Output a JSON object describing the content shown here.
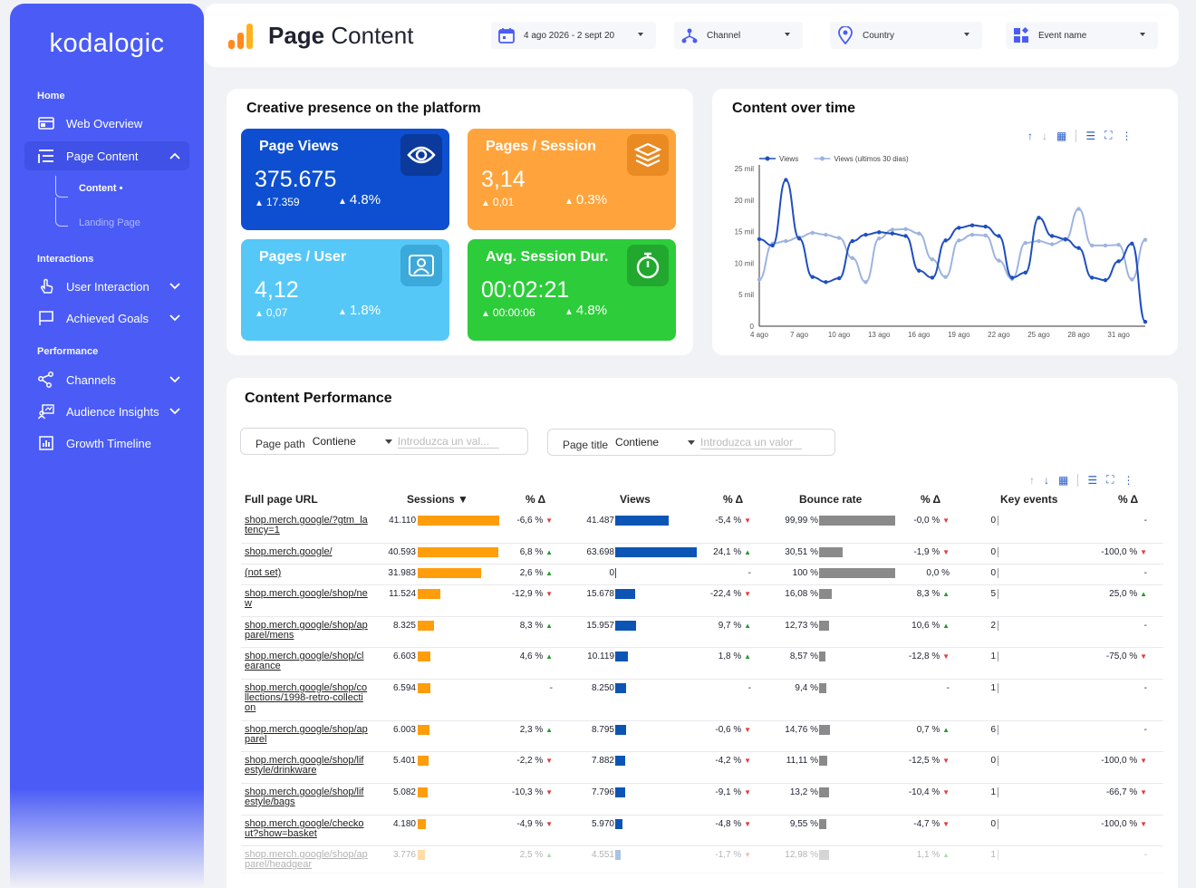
{
  "sidebar": {
    "brand": "kodalogic",
    "sections": {
      "home": "Home",
      "interactions": "Interactions",
      "performance": "Performance"
    },
    "items": {
      "web_overview": "Web Overview",
      "page_content": "Page Content",
      "content_sub": "Content •",
      "landing_page": "Landing Page",
      "user_interaction": "User Interaction",
      "achieved_goals": "Achieved Goals",
      "channels": "Channels",
      "audience_insights": "Audience Insights",
      "growth_timeline": "Growth Timeline"
    }
  },
  "header": {
    "title_bold": "Page",
    "title_rest": " Content",
    "filters": {
      "date": "4 ago 2026 - 2 sept 20",
      "channel": "Channel",
      "country": "Country",
      "event": "Event name"
    }
  },
  "presence": {
    "title": "Creative presence on the platform",
    "kpis": [
      {
        "title": "Page Views",
        "value": "375.675",
        "abs": "17.359",
        "pct": "4.8%",
        "color": "#0d4fd0"
      },
      {
        "title": "Pages / Session",
        "value": "3,14",
        "abs": "0,01",
        "pct": "0.3%",
        "color": "#ffa43c"
      },
      {
        "title": "Pages / User",
        "value": "4,12",
        "abs": "0,07",
        "pct": "1.8%",
        "color": "#56c8f7"
      },
      {
        "title": "Avg. Session Dur.",
        "value": "00:02:21",
        "abs": "00:00:06",
        "pct": "4.8%",
        "color": "#2dcc3a"
      }
    ]
  },
  "over_time": {
    "title": "Content over time"
  },
  "chart_data": {
    "type": "line",
    "title": "",
    "x": [
      "4 ago",
      "5 ago",
      "6 ago",
      "7 ago",
      "8 ago",
      "9 ago",
      "10 ago",
      "11 ago",
      "12 ago",
      "13 ago",
      "14 ago",
      "15 ago",
      "16 ago",
      "17 ago",
      "18 ago",
      "19 ago",
      "20 ago",
      "21 ago",
      "22 ago",
      "23 ago",
      "24 ago",
      "25 ago",
      "26 ago",
      "27 ago",
      "28 ago",
      "29 ago",
      "30 ago",
      "31 ago",
      "1 sept",
      "2 sept"
    ],
    "xticks": [
      "4 ago",
      "7 ago",
      "10 ago",
      "13 ago",
      "16 ago",
      "19 ago",
      "22 ago",
      "25 ago",
      "28 ago",
      "31 ago"
    ],
    "yticks": [
      "0",
      "5 mil",
      "10 mil",
      "15 mil",
      "20 mil",
      "25 mil"
    ],
    "ylim": [
      0,
      25000
    ],
    "series": [
      {
        "name": "Views",
        "color": "#1f4fbf",
        "values": [
          13800,
          12800,
          23200,
          13900,
          7800,
          7000,
          7600,
          13500,
          14500,
          14900,
          14700,
          14300,
          8800,
          7700,
          13600,
          15600,
          16000,
          15800,
          14300,
          7700,
          8500,
          17200,
          14300,
          13800,
          12400,
          7700,
          7300,
          10300,
          13100,
          700
        ]
      },
      {
        "name": "Views (ultimos 30 dias)",
        "color": "#9db4e0",
        "values": [
          7400,
          13100,
          13500,
          14100,
          14800,
          14500,
          14000,
          10800,
          7000,
          13900,
          15300,
          15400,
          14700,
          10600,
          7800,
          13600,
          14500,
          14400,
          10400,
          7500,
          13200,
          13500,
          13000,
          13700,
          18600,
          12800,
          12800,
          12900,
          7400,
          13700
        ]
      }
    ]
  },
  "table": {
    "title": "Content Performance",
    "filters": [
      {
        "label": "Page path",
        "op": "Contiene",
        "placeholder": "Introduzca un val..."
      },
      {
        "label": "Page title",
        "op": "Contiene",
        "placeholder": "Introduzca un valor"
      }
    ],
    "headers": {
      "url": "Full page URL",
      "sessions": "Sessions ▼",
      "pct1": "% Δ",
      "views": "Views",
      "pct2": "% Δ",
      "bounce": "Bounce rate",
      "pct3": "% Δ",
      "key": "Key events",
      "pct4": "% Δ"
    },
    "colors": {
      "sessions": "#ff9d0a",
      "views": "#0d55b5",
      "bounce": "#8a8a8a"
    },
    "rows": [
      {
        "url": "shop.merch.google/?gtm_latency=1",
        "sessions": "41.110",
        "s": 41110,
        "d1": "-6,6 %",
        "a1": "dn",
        "views": "41.487",
        "v": 41487,
        "d2": "-5,4 %",
        "a2": "dn",
        "bounce": "99,99 %",
        "b": 99.99,
        "d3": "-0,0 %",
        "a3": "dn",
        "key": "0",
        "d4": "-",
        "a4": ""
      },
      {
        "url": "shop.merch.google/",
        "sessions": "40.593",
        "s": 40593,
        "d1": "6,8 %",
        "a1": "up",
        "views": "63.698",
        "v": 63698,
        "d2": "24,1 %",
        "a2": "up",
        "bounce": "30,51 %",
        "b": 30.51,
        "d3": "-1,9 %",
        "a3": "dn",
        "key": "0",
        "d4": "-100,0 %",
        "a4": "dn"
      },
      {
        "url": "(not set)",
        "sessions": "31.983",
        "s": 31983,
        "d1": "2,6 %",
        "a1": "up",
        "views": "0",
        "v": 0,
        "d2": "-",
        "a2": "",
        "bounce": "100 %",
        "b": 100,
        "d3": "0,0 %",
        "a3": "",
        "key": "0",
        "d4": "-",
        "a4": ""
      },
      {
        "url": "shop.merch.google/shop/new",
        "sessions": "11.524",
        "s": 11524,
        "d1": "-12,9 %",
        "a1": "dn",
        "views": "15.678",
        "v": 15678,
        "d2": "-22,4 %",
        "a2": "dn",
        "bounce": "16,08 %",
        "b": 16.08,
        "d3": "8,3 %",
        "a3": "up",
        "key": "5",
        "d4": "25,0 %",
        "a4": "up"
      },
      {
        "url": "shop.merch.google/shop/apparel/mens",
        "sessions": "8.325",
        "s": 8325,
        "d1": "8,3 %",
        "a1": "up",
        "views": "15.957",
        "v": 15957,
        "d2": "9,7 %",
        "a2": "up",
        "bounce": "12,73 %",
        "b": 12.73,
        "d3": "10,6 %",
        "a3": "up",
        "key": "2",
        "d4": "-",
        "a4": ""
      },
      {
        "url": "shop.merch.google/shop/clearance",
        "sessions": "6.603",
        "s": 6603,
        "d1": "4,6 %",
        "a1": "up",
        "views": "10.119",
        "v": 10119,
        "d2": "1,8 %",
        "a2": "up",
        "bounce": "8,57 %",
        "b": 8.57,
        "d3": "-12,8 %",
        "a3": "dn",
        "key": "1",
        "d4": "-75,0 %",
        "a4": "dn"
      },
      {
        "url": "shop.merch.google/shop/collections/1998-retro-collection",
        "sessions": "6.594",
        "s": 6594,
        "d1": "-",
        "a1": "",
        "views": "8.250",
        "v": 8250,
        "d2": "-",
        "a2": "",
        "bounce": "9,4 %",
        "b": 9.4,
        "d3": "-",
        "a3": "",
        "key": "1",
        "d4": "-",
        "a4": ""
      },
      {
        "url": "shop.merch.google/shop/apparel",
        "sessions": "6.003",
        "s": 6003,
        "d1": "2,3 %",
        "a1": "up",
        "views": "8.795",
        "v": 8795,
        "d2": "-0,6 %",
        "a2": "dn",
        "bounce": "14,76 %",
        "b": 14.76,
        "d3": "0,7 %",
        "a3": "up",
        "key": "6",
        "d4": "-",
        "a4": ""
      },
      {
        "url": "shop.merch.google/shop/lifestyle/drinkware",
        "sessions": "5.401",
        "s": 5401,
        "d1": "-2,2 %",
        "a1": "dn",
        "views": "7.882",
        "v": 7882,
        "d2": "-4,2 %",
        "a2": "dn",
        "bounce": "11,11 %",
        "b": 11.11,
        "d3": "-12,5 %",
        "a3": "dn",
        "key": "0",
        "d4": "-100,0 %",
        "a4": "dn"
      },
      {
        "url": "shop.merch.google/shop/lifestyle/bags",
        "sessions": "5.082",
        "s": 5082,
        "d1": "-10,3 %",
        "a1": "dn",
        "views": "7.796",
        "v": 7796,
        "d2": "-9,1 %",
        "a2": "dn",
        "bounce": "13,2 %",
        "b": 13.2,
        "d3": "-10,4 %",
        "a3": "dn",
        "key": "1",
        "d4": "-66,7 %",
        "a4": "dn"
      },
      {
        "url": "shop.merch.google/checkout?show=basket",
        "sessions": "4.180",
        "s": 4180,
        "d1": "-4,9 %",
        "a1": "dn",
        "views": "5.970",
        "v": 5970,
        "d2": "-4,8 %",
        "a2": "dn",
        "bounce": "9,55 %",
        "b": 9.55,
        "d3": "-4,7 %",
        "a3": "dn",
        "key": "0",
        "d4": "-100,0 %",
        "a4": "dn"
      },
      {
        "url": "shop.merch.google/shop/apparel/headgear",
        "sessions": "3.776",
        "s": 3776,
        "d1": "2,5 %",
        "a1": "up",
        "views": "4.551",
        "v": 4551,
        "d2": "-1,7 %",
        "a2": "dn",
        "bounce": "12,98 %",
        "b": 12.98,
        "d3": "1,1 %",
        "a3": "up",
        "key": "1",
        "d4": "-",
        "a4": ""
      }
    ]
  }
}
